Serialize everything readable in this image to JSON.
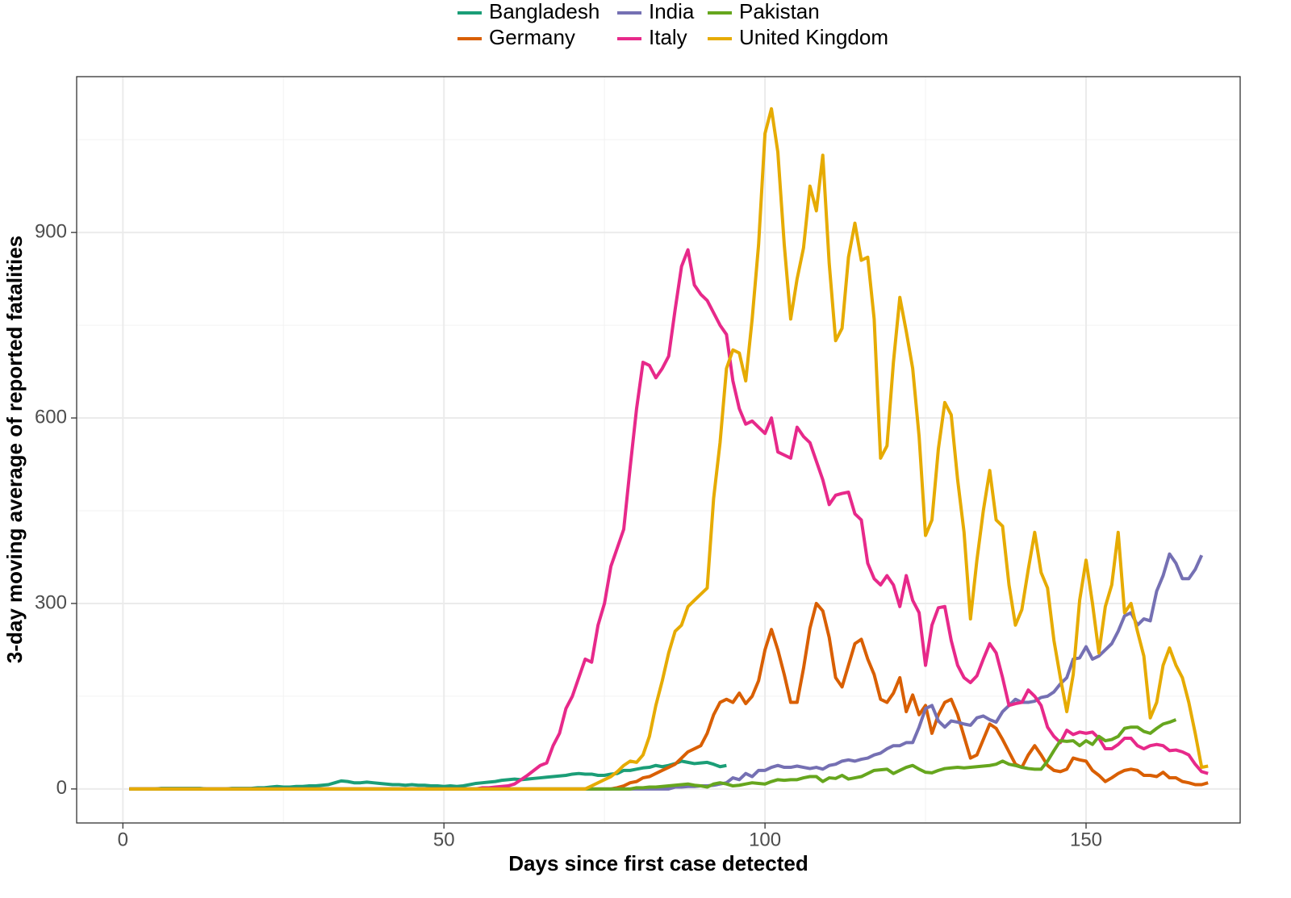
{
  "chart_data": {
    "type": "line",
    "x_label": "Days since first case detected",
    "y_label": "3-day moving average of reported fatalities",
    "xlim": [
      -7.2,
      174
    ],
    "ylim": [
      -55,
      1152
    ],
    "xticks": [
      0,
      50,
      100,
      150
    ],
    "yticks": [
      0,
      300,
      600,
      900
    ],
    "x_minor_ticks": [
      25,
      75,
      125
    ],
    "y_minor_ticks": [
      150,
      450,
      750,
      1050
    ],
    "grid": true,
    "legend": "top",
    "x": [
      1,
      2,
      3,
      4,
      5,
      6,
      7,
      8,
      9,
      10,
      11,
      12,
      13,
      14,
      15,
      16,
      17,
      18,
      19,
      20,
      21,
      22,
      23,
      24,
      25,
      26,
      27,
      28,
      29,
      30,
      31,
      32,
      33,
      34,
      35,
      36,
      37,
      38,
      39,
      40,
      41,
      42,
      43,
      44,
      45,
      46,
      47,
      48,
      49,
      50,
      51,
      52,
      53,
      54,
      55,
      56,
      57,
      58,
      59,
      60,
      61,
      62,
      63,
      64,
      65,
      66,
      67,
      68,
      69,
      70,
      71,
      72,
      73,
      74,
      75,
      76,
      77,
      78,
      79,
      80,
      81,
      82,
      83,
      84,
      85,
      86,
      87,
      88,
      89,
      90,
      91,
      92,
      93,
      94,
      95,
      96,
      97,
      98,
      99,
      100,
      101,
      102,
      103,
      104,
      105,
      106,
      107,
      108,
      109,
      110,
      111,
      112,
      113,
      114,
      115,
      116,
      117,
      118,
      119,
      120,
      121,
      122,
      123,
      124,
      125,
      126,
      127,
      128,
      129,
      130,
      131,
      132,
      133,
      134,
      135,
      136,
      137,
      138,
      139,
      140,
      141,
      142,
      143,
      144,
      145,
      146,
      147,
      148,
      149,
      150,
      151,
      152,
      153,
      154,
      155,
      156,
      157,
      158,
      159,
      160,
      161,
      162,
      163,
      164,
      165,
      166,
      167,
      168,
      169
    ],
    "series": [
      {
        "name": "Bangladesh",
        "color": "#1b9e77",
        "values": [
          0,
          0,
          0,
          0,
          0,
          1,
          1,
          1,
          1,
          1,
          1,
          1,
          0,
          0,
          0,
          0,
          1,
          1,
          1,
          1,
          2,
          2,
          3,
          4,
          3,
          3,
          4,
          4,
          5,
          5,
          6,
          7,
          10,
          13,
          12,
          10,
          10,
          11,
          10,
          9,
          8,
          7,
          7,
          6,
          7,
          6,
          6,
          5,
          5,
          4,
          5,
          4,
          5,
          7,
          9,
          10,
          11,
          12,
          14,
          15,
          16,
          15,
          16,
          17,
          18,
          19,
          20,
          21,
          22,
          24,
          25,
          24,
          24,
          22,
          22,
          24,
          25,
          30,
          30,
          32,
          34,
          35,
          38,
          36,
          38,
          41,
          45,
          43,
          41,
          42,
          43,
          40,
          36,
          38,
          null,
          null,
          null,
          null,
          null,
          null,
          null,
          null,
          null,
          null,
          null,
          null,
          null,
          null,
          null,
          null,
          null,
          null,
          null,
          null,
          null,
          null,
          null,
          null,
          null,
          null,
          null,
          null,
          null,
          null,
          null,
          null,
          null,
          null,
          null,
          null,
          null,
          null,
          null,
          null,
          null,
          null,
          null,
          null,
          null,
          null,
          null,
          null,
          null,
          null,
          null,
          null,
          null,
          null,
          null,
          null,
          null,
          null,
          null,
          null,
          null,
          null,
          null,
          null,
          null,
          null,
          null,
          null,
          null,
          null,
          null,
          null,
          null,
          null,
          null
        ]
      },
      {
        "name": "Germany",
        "color": "#d95f02",
        "values": [
          0,
          0,
          0,
          0,
          0,
          0,
          0,
          0,
          0,
          0,
          0,
          0,
          0,
          0,
          0,
          0,
          0,
          0,
          0,
          0,
          0,
          0,
          0,
          0,
          0,
          0,
          0,
          0,
          0,
          0,
          0,
          0,
          0,
          0,
          0,
          0,
          0,
          0,
          0,
          0,
          0,
          0,
          0,
          0,
          0,
          0,
          0,
          0,
          0,
          0,
          0,
          0,
          0,
          0,
          0,
          0,
          0,
          0,
          0,
          0,
          0,
          0,
          0,
          0,
          0,
          0,
          0,
          0,
          0,
          0,
          0,
          0,
          0,
          0,
          0,
          0,
          2,
          5,
          10,
          12,
          18,
          20,
          25,
          30,
          35,
          40,
          50,
          60,
          65,
          70,
          90,
          120,
          140,
          145,
          140,
          155,
          138,
          150,
          175,
          225,
          258,
          225,
          185,
          140,
          140,
          195,
          260,
          300,
          288,
          245,
          180,
          165,
          200,
          235,
          242,
          210,
          185,
          145,
          140,
          155,
          180,
          125,
          152,
          120,
          135,
          90,
          120,
          140,
          145,
          120,
          85,
          50,
          55,
          80,
          105,
          98,
          80,
          60,
          40,
          35,
          55,
          70,
          55,
          38,
          30,
          28,
          32,
          50,
          47,
          45,
          30,
          22,
          12,
          18,
          25,
          30,
          32,
          30,
          22,
          22,
          20,
          27,
          18,
          18,
          12,
          10,
          7,
          7,
          10
        ]
      },
      {
        "name": "India",
        "color": "#7570b3",
        "values": [
          0,
          0,
          0,
          0,
          0,
          0,
          0,
          0,
          0,
          0,
          0,
          0,
          0,
          0,
          0,
          0,
          0,
          0,
          0,
          0,
          0,
          0,
          0,
          0,
          0,
          0,
          0,
          0,
          0,
          0,
          0,
          0,
          0,
          0,
          0,
          0,
          0,
          0,
          0,
          0,
          0,
          0,
          0,
          0,
          0,
          0,
          0,
          0,
          0,
          0,
          0,
          0,
          0,
          0,
          0,
          0,
          0,
          0,
          0,
          0,
          0,
          0,
          0,
          0,
          0,
          0,
          0,
          0,
          0,
          0,
          0,
          0,
          0,
          0,
          0,
          0,
          0,
          0,
          0,
          0,
          0,
          0,
          0,
          0,
          0,
          3,
          3,
          4,
          4,
          5,
          5,
          6,
          8,
          10,
          18,
          15,
          25,
          20,
          30,
          30,
          35,
          38,
          35,
          35,
          37,
          35,
          33,
          35,
          32,
          38,
          40,
          45,
          47,
          45,
          48,
          50,
          55,
          58,
          65,
          70,
          70,
          75,
          75,
          100,
          130,
          135,
          110,
          100,
          110,
          108,
          105,
          103,
          115,
          118,
          112,
          108,
          125,
          135,
          145,
          140,
          140,
          142,
          148,
          150,
          157,
          170,
          180,
          210,
          212,
          230,
          210,
          215,
          225,
          235,
          255,
          280,
          285,
          265,
          275,
          272,
          320,
          345,
          380,
          365,
          340,
          340,
          355,
          378,
          null
        ]
      },
      {
        "name": "Italy",
        "color": "#e7298a",
        "values": [
          0,
          0,
          0,
          0,
          0,
          0,
          0,
          0,
          0,
          0,
          0,
          0,
          0,
          0,
          0,
          0,
          0,
          0,
          0,
          0,
          0,
          0,
          0,
          0,
          0,
          0,
          0,
          0,
          0,
          0,
          0,
          0,
          0,
          0,
          0,
          0,
          0,
          0,
          0,
          0,
          0,
          0,
          0,
          0,
          0,
          0,
          0,
          0,
          0,
          0,
          0,
          0,
          0,
          0,
          0,
          2,
          2,
          3,
          4,
          5,
          8,
          15,
          22,
          30,
          38,
          42,
          70,
          90,
          130,
          150,
          180,
          210,
          205,
          265,
          300,
          360,
          390,
          420,
          520,
          615,
          690,
          685,
          665,
          680,
          700,
          775,
          845,
          872,
          815,
          800,
          790,
          770,
          750,
          735,
          660,
          615,
          590,
          595,
          585,
          575,
          600,
          545,
          540,
          535,
          585,
          570,
          560,
          530,
          500,
          460,
          475,
          478,
          480,
          445,
          435,
          365,
          340,
          330,
          345,
          330,
          295,
          345,
          305,
          285,
          200,
          265,
          293,
          295,
          240,
          200,
          180,
          172,
          183,
          210,
          235,
          220,
          180,
          135,
          138,
          140,
          160,
          150,
          135,
          100,
          85,
          75,
          95,
          88,
          92,
          90,
          92,
          82,
          65,
          65,
          72,
          82,
          82,
          70,
          65,
          70,
          72,
          70,
          62,
          63,
          60,
          55,
          40,
          28,
          25
        ]
      },
      {
        "name": "Pakistan",
        "color": "#66a61e",
        "values": [
          0,
          0,
          0,
          0,
          0,
          0,
          0,
          0,
          0,
          0,
          0,
          0,
          0,
          0,
          0,
          0,
          0,
          0,
          0,
          0,
          0,
          0,
          0,
          0,
          0,
          0,
          0,
          0,
          0,
          0,
          0,
          0,
          0,
          0,
          0,
          0,
          0,
          0,
          0,
          0,
          0,
          0,
          0,
          0,
          0,
          0,
          0,
          0,
          0,
          0,
          0,
          0,
          0,
          0,
          0,
          0,
          0,
          0,
          0,
          0,
          0,
          0,
          0,
          0,
          0,
          0,
          0,
          0,
          0,
          0,
          0,
          0,
          0,
          0,
          0,
          0,
          0,
          0,
          0,
          2,
          2,
          3,
          3,
          4,
          5,
          6,
          7,
          8,
          6,
          5,
          3,
          8,
          10,
          8,
          5,
          6,
          8,
          10,
          9,
          8,
          12,
          15,
          14,
          15,
          15,
          18,
          20,
          20,
          12,
          18,
          17,
          22,
          16,
          18,
          20,
          25,
          30,
          31,
          32,
          25,
          30,
          35,
          38,
          32,
          27,
          26,
          30,
          33,
          34,
          35,
          34,
          35,
          36,
          37,
          38,
          40,
          45,
          40,
          38,
          35,
          33,
          32,
          32,
          45,
          62,
          78,
          77,
          78,
          70,
          78,
          72,
          85,
          78,
          80,
          85,
          98,
          100,
          100,
          93,
          90,
          98,
          105,
          108,
          112,
          null,
          null,
          null,
          null,
          null
        ]
      },
      {
        "name": "United Kingdom",
        "color": "#e6ab02",
        "values": [
          0,
          0,
          0,
          0,
          0,
          0,
          0,
          0,
          0,
          0,
          0,
          0,
          0,
          0,
          0,
          0,
          0,
          0,
          0,
          0,
          0,
          0,
          0,
          0,
          0,
          0,
          0,
          0,
          0,
          0,
          0,
          0,
          0,
          0,
          0,
          0,
          0,
          0,
          0,
          0,
          0,
          0,
          0,
          0,
          0,
          0,
          0,
          0,
          0,
          0,
          0,
          0,
          0,
          0,
          0,
          0,
          0,
          0,
          0,
          0,
          0,
          0,
          0,
          0,
          0,
          0,
          0,
          0,
          0,
          0,
          0,
          0,
          5,
          10,
          15,
          20,
          28,
          38,
          45,
          43,
          55,
          85,
          135,
          175,
          220,
          255,
          265,
          295,
          305,
          315,
          325,
          470,
          560,
          680,
          710,
          705,
          660,
          760,
          880,
          1060,
          1100,
          1030,
          880,
          760,
          825,
          875,
          975,
          935,
          1025,
          850,
          725,
          745,
          860,
          915,
          855,
          860,
          760,
          535,
          555,
          690,
          795,
          740,
          680,
          570,
          410,
          435,
          550,
          625,
          605,
          500,
          415,
          275,
          370,
          450,
          515,
          435,
          425,
          330,
          265,
          290,
          355,
          415,
          350,
          325,
          240,
          180,
          125,
          185,
          305,
          370,
          300,
          220,
          295,
          330,
          415,
          285,
          300,
          255,
          215,
          115,
          140,
          200,
          228,
          200,
          180,
          140,
          90,
          35,
          37
        ]
      }
    ]
  }
}
